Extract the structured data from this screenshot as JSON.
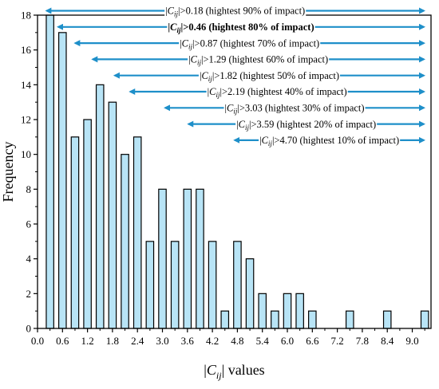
{
  "chart_data": {
    "type": "bar",
    "title": "",
    "xlabel_pre": "|",
    "xlabel_var": "C",
    "xlabel_sub": "ij",
    "xlabel_post": "| values",
    "ylabel": "Frequency",
    "xlim": [
      0,
      9.45
    ],
    "ylim": [
      0,
      18
    ],
    "bin_width": 0.3,
    "x_ticks": [
      "0.0",
      "0.6",
      "1.2",
      "1.8",
      "2.4",
      "3.0",
      "3.6",
      "4.2",
      "4.8",
      "5.4",
      "6.0",
      "6.6",
      "7.2",
      "7.8",
      "8.4",
      "9.0"
    ],
    "x_tick_values": [
      0.0,
      0.6,
      1.2,
      1.8,
      2.4,
      3.0,
      3.6,
      4.2,
      4.8,
      5.4,
      6.0,
      6.6,
      7.2,
      7.8,
      8.4,
      9.0
    ],
    "y_ticks": [
      0,
      2,
      4,
      6,
      8,
      10,
      12,
      14,
      16,
      18
    ],
    "bins": [
      {
        "x": 0.3,
        "value": 18
      },
      {
        "x": 0.6,
        "value": 17
      },
      {
        "x": 0.9,
        "value": 11
      },
      {
        "x": 1.2,
        "value": 12
      },
      {
        "x": 1.5,
        "value": 14
      },
      {
        "x": 1.8,
        "value": 13
      },
      {
        "x": 2.1,
        "value": 10
      },
      {
        "x": 2.4,
        "value": 11
      },
      {
        "x": 2.7,
        "value": 5
      },
      {
        "x": 3.0,
        "value": 8
      },
      {
        "x": 3.3,
        "value": 5
      },
      {
        "x": 3.6,
        "value": 8
      },
      {
        "x": 3.9,
        "value": 8
      },
      {
        "x": 4.2,
        "value": 5
      },
      {
        "x": 4.5,
        "value": 1
      },
      {
        "x": 4.8,
        "value": 5
      },
      {
        "x": 5.1,
        "value": 4
      },
      {
        "x": 5.4,
        "value": 2
      },
      {
        "x": 5.7,
        "value": 1
      },
      {
        "x": 6.0,
        "value": 2
      },
      {
        "x": 6.3,
        "value": 2
      },
      {
        "x": 6.6,
        "value": 1
      },
      {
        "x": 7.5,
        "value": 1
      },
      {
        "x": 8.4,
        "value": 1
      },
      {
        "x": 9.3,
        "value": 1
      }
    ],
    "annotations": [
      {
        "threshold": 0.18,
        "text_pre": "|",
        "var": "C",
        "sub": "ij",
        "text_post": "|>0.18 (hightest 90% of impact)",
        "bold": false
      },
      {
        "threshold": 0.46,
        "text_pre": "|",
        "var": "C",
        "sub": "ij",
        "text_post": "|>0.46 (hightest 80% of impact)",
        "bold": true
      },
      {
        "threshold": 0.87,
        "text_pre": "|",
        "var": "C",
        "sub": "ij",
        "text_post": "|>0.87 (hightest 70% of impact)",
        "bold": false
      },
      {
        "threshold": 1.29,
        "text_pre": "|",
        "var": "C",
        "sub": "ij",
        "text_post": "|>1.29 (hightest 60% of impact)",
        "bold": false
      },
      {
        "threshold": 1.82,
        "text_pre": "|",
        "var": "C",
        "sub": "ij",
        "text_post": "|>1.82 (hightest 50% of impact)",
        "bold": false
      },
      {
        "threshold": 2.19,
        "text_pre": "|",
        "var": "C",
        "sub": "ij",
        "text_post": "|>2.19 (hightest 40% of impact)",
        "bold": false
      },
      {
        "threshold": 3.03,
        "text_pre": "|",
        "var": "C",
        "sub": "ij",
        "text_post": "|>3.03 (hightest 30% of impact)",
        "bold": false
      },
      {
        "threshold": 3.59,
        "text_pre": "|",
        "var": "C",
        "sub": "ij",
        "text_post": "|>3.59 (hightest 20% of impact)",
        "bold": false
      },
      {
        "threshold": 4.7,
        "text_pre": "|",
        "var": "C",
        "sub": "ij",
        "text_post": "|>4.70 (hightest 10% of impact)",
        "bold": false
      }
    ],
    "arrow_color": "#1e8fc9",
    "bar_color": "#b8e4f6",
    "grid": false,
    "legend": "none"
  }
}
